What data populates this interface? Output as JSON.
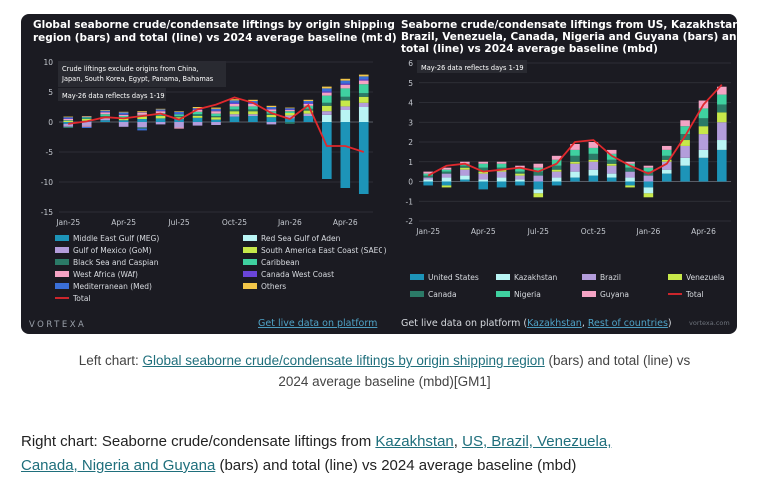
{
  "caption_left": {
    "prefix": "Left chart: ",
    "link": "Global seaborne crude/condensate liftings by origin shipping region",
    "suffix_line1": " (bars) and total (line) vs",
    "line2": "2024 average baseline (mbd)[GM1]"
  },
  "caption_right": {
    "prefix": "Right chart: Seaborne crude/condensate liftings from ",
    "link1": "Kazakhstan",
    "sep1": ", ",
    "link2": "US, Brazil, Venezuela,",
    "link3": "Canada, Nigeria and Guyana",
    "suffix": " (bars) and total (line) vs 2024 average baseline (mbd)"
  },
  "chart_data": [
    {
      "type": "bar",
      "title": "Global seaborne crude/condensate liftings by origin shipping region (bars) and total (line) vs 2024 average baseline (mbd)",
      "title_lines": [
        "Global seaborne crude/condensate liftings by origin shipping",
        "region (bars) and total (line) vs 2024 average baseline (mbd)"
      ],
      "note1": "Crude liftings exclude origins from China,",
      "note2": "Japan, South Korea, Egypt, Panama, Bahamas",
      "note3": "May-26 data reflects days 1-19",
      "ylim": [
        -15,
        10
      ],
      "yticks": [
        10,
        5,
        0,
        -5,
        -10,
        -15
      ],
      "x_tick_labels": [
        "Jan-25",
        "Apr-25",
        "Jul-25",
        "Oct-25",
        "Jan-26",
        "Apr-26"
      ],
      "categories": [
        "Jan-25",
        "Feb-25",
        "Mar-25",
        "Apr-25",
        "May-25",
        "Jun-25",
        "Jul-25",
        "Aug-25",
        "Sep-25",
        "Oct-25",
        "Nov-25",
        "Dec-25",
        "Jan-26",
        "Feb-26",
        "Mar-26",
        "Apr-26",
        "May-26"
      ],
      "series": [
        {
          "name": "Middle East Gulf (MEG)",
          "color": "#1d94b8",
          "values": [
            -0.3,
            0.2,
            0.3,
            0.3,
            0.5,
            0.6,
            0.5,
            0.7,
            0.4,
            0.9,
            1.0,
            0.8,
            0.6,
            1.0,
            -9.5,
            -11.0,
            -12.0
          ]
        },
        {
          "name": "Red Sea Gulf of Aden",
          "color": "#b9f4f4",
          "values": [
            0,
            0,
            0,
            0,
            0,
            0,
            0,
            0,
            0,
            0,
            0,
            0,
            0,
            0,
            1.2,
            2.0,
            2.5
          ]
        },
        {
          "name": "Gulf of Mexico (GoM)",
          "color": "#b39ddb",
          "values": [
            -0.5,
            -0.6,
            0.3,
            -0.8,
            -0.9,
            -0.4,
            -0.9,
            -0.6,
            -0.5,
            0.4,
            0.3,
            -0.4,
            0.5,
            0.4,
            0.6,
            0.6,
            0.7
          ]
        },
        {
          "name": "South America East Coast (SAEC)",
          "color": "#c7e84a",
          "values": [
            0.2,
            0.3,
            0.2,
            0.3,
            0.4,
            0.4,
            0.3,
            0.3,
            0.4,
            0.5,
            0.5,
            0.4,
            0.4,
            0.5,
            0.9,
            1.0,
            1.0
          ]
        },
        {
          "name": "Black Sea and Caspian",
          "color": "#2b7a67",
          "values": [
            -0.2,
            0.1,
            0.2,
            0.1,
            -0.2,
            0.1,
            0.2,
            0.3,
            0.2,
            0.3,
            0.3,
            0.2,
            -0.3,
            0.3,
            0.5,
            0.6,
            0.6
          ]
        },
        {
          "name": "Caribbean",
          "color": "#3fd1a0",
          "values": [
            0.1,
            0.2,
            0.3,
            0.3,
            0.3,
            0.4,
            0.3,
            0.4,
            0.4,
            0.5,
            0.5,
            0.4,
            0.3,
            0.5,
            1.2,
            1.4,
            1.5
          ]
        },
        {
          "name": "West Africa (WAf)",
          "color": "#f4a3c4",
          "values": [
            0.2,
            -0.2,
            0.3,
            0.2,
            0.3,
            0.3,
            -0.2,
            0.3,
            0.4,
            0.4,
            0.4,
            0.3,
            0.2,
            0.3,
            0.5,
            0.6,
            0.6
          ]
        },
        {
          "name": "Canada West Coast",
          "color": "#6a45d8",
          "values": [
            0.1,
            0.1,
            0.1,
            0.1,
            0.1,
            0.1,
            0.1,
            0.1,
            0.1,
            0.2,
            0.2,
            0.1,
            0.1,
            0.2,
            0.2,
            0.2,
            0.2
          ]
        },
        {
          "name": "Mediterranean (Med)",
          "color": "#3a6fd8",
          "values": [
            0.2,
            -0.2,
            0.2,
            0.3,
            -0.3,
            0.2,
            0.3,
            0.2,
            0.3,
            0.4,
            0.3,
            0.3,
            0.2,
            0.3,
            0.5,
            0.5,
            0.5
          ]
        },
        {
          "name": "Others",
          "color": "#f2c649",
          "values": [
            0.1,
            0.1,
            0.1,
            0.1,
            0.2,
            0.1,
            0.1,
            0.2,
            0.2,
            0.2,
            0.2,
            0.2,
            0.1,
            0.2,
            0.3,
            0.3,
            0.3
          ]
        }
      ],
      "total": {
        "name": "Total",
        "color": "#e0282d",
        "values": [
          -0.3,
          0.1,
          0.8,
          0.6,
          1.0,
          1.4,
          0.4,
          2.1,
          2.9,
          4.1,
          3.2,
          1.5,
          0.5,
          2.8,
          -4.0,
          -4.0,
          -5.0
        ]
      },
      "footer_brand": "VORTEXA",
      "footer_link": "Get live data on platform"
    },
    {
      "type": "bar",
      "title": "Seaborne crude/condensate liftings from US, Kazakhstan, Brazil, Venezuela, Canada, Nigeria and Guyana (bars) and total (line) vs 2024 average baseline (mbd)",
      "title_lines": [
        "Seaborne crude/condensate liftings from US, Kazakhstan,",
        "Brazil, Venezuela, Canada, Nigeria and Guyana (bars) and",
        "total (line) vs 2024 average baseline (mbd)"
      ],
      "note1": "May-26 data reflects days 1-19",
      "ylim": [
        -2,
        6
      ],
      "yticks": [
        6,
        5,
        4,
        3,
        2,
        1,
        0,
        -1,
        -2
      ],
      "x_tick_labels": [
        "Jan-25",
        "Apr-25",
        "Jul-25",
        "Oct-25",
        "Jan-26",
        "Apr-26"
      ],
      "categories": [
        "Jan-25",
        "Feb-25",
        "Mar-25",
        "Apr-25",
        "May-25",
        "Jun-25",
        "Jul-25",
        "Aug-25",
        "Sep-25",
        "Oct-25",
        "Nov-25",
        "Dec-25",
        "Jan-26",
        "Feb-26",
        "Mar-26",
        "Apr-26",
        "May-26"
      ],
      "series": [
        {
          "name": "United States",
          "color": "#1d94b8",
          "values": [
            -0.2,
            -0.2,
            0.1,
            -0.4,
            -0.3,
            -0.2,
            -0.4,
            -0.2,
            0.2,
            0.3,
            0.2,
            -0.2,
            -0.3,
            0.4,
            0.8,
            1.2,
            1.6
          ]
        },
        {
          "name": "Kazakhstan",
          "color": "#b9f4f4",
          "values": [
            0.1,
            0.2,
            0.2,
            0.1,
            0.2,
            0.1,
            -0.2,
            0.2,
            0.3,
            0.3,
            0.2,
            0.2,
            -0.3,
            0.2,
            0.4,
            0.4,
            0.5
          ]
        },
        {
          "name": "Brazil",
          "color": "#b39ddb",
          "values": [
            0.1,
            0.2,
            0.3,
            0.3,
            0.3,
            0.2,
            0.3,
            0.3,
            0.4,
            0.4,
            0.4,
            0.3,
            0.3,
            0.4,
            0.6,
            0.8,
            0.9
          ]
        },
        {
          "name": "Venezuela",
          "color": "#c7e84a",
          "values": [
            0,
            -0.1,
            0.1,
            0.1,
            0.1,
            0.1,
            -0.2,
            0.1,
            0.1,
            0.1,
            0.1,
            -0.1,
            -0.2,
            0.1,
            0.3,
            0.4,
            0.5
          ]
        },
        {
          "name": "Canada",
          "color": "#2b7a67",
          "values": [
            0.1,
            0.1,
            0.1,
            0.2,
            0.1,
            0.1,
            0.2,
            0.2,
            0.3,
            0.3,
            0.2,
            0.2,
            0.2,
            0.2,
            0.3,
            0.4,
            0.4
          ]
        },
        {
          "name": "Nigeria",
          "color": "#3fd1a0",
          "values": [
            0.1,
            0.1,
            0.1,
            0.2,
            0.2,
            0.2,
            0.2,
            0.3,
            0.3,
            0.3,
            0.3,
            0.2,
            0.2,
            0.3,
            0.4,
            0.5,
            0.5
          ]
        },
        {
          "name": "Guyana",
          "color": "#f4a3c4",
          "values": [
            0.1,
            0.1,
            0.1,
            0.1,
            0.1,
            0.1,
            0.2,
            0.2,
            0.3,
            0.3,
            0.2,
            0.1,
            0.1,
            0.2,
            0.3,
            0.4,
            0.4
          ]
        }
      ],
      "total": {
        "name": "Total",
        "color": "#e0282d",
        "values": [
          0.3,
          0.8,
          0.9,
          0.5,
          0.6,
          0.7,
          0.5,
          0.9,
          2.0,
          2.1,
          1.3,
          0.8,
          0.4,
          0.9,
          2.3,
          3.9,
          4.9
        ]
      },
      "footer_text": "Get live data on platform (",
      "footer_link1": "Kazakhstan",
      "footer_sep": ", ",
      "footer_link2": "Rest of countries",
      "footer_close": ")",
      "footer_brand": "vortexa.com"
    }
  ]
}
